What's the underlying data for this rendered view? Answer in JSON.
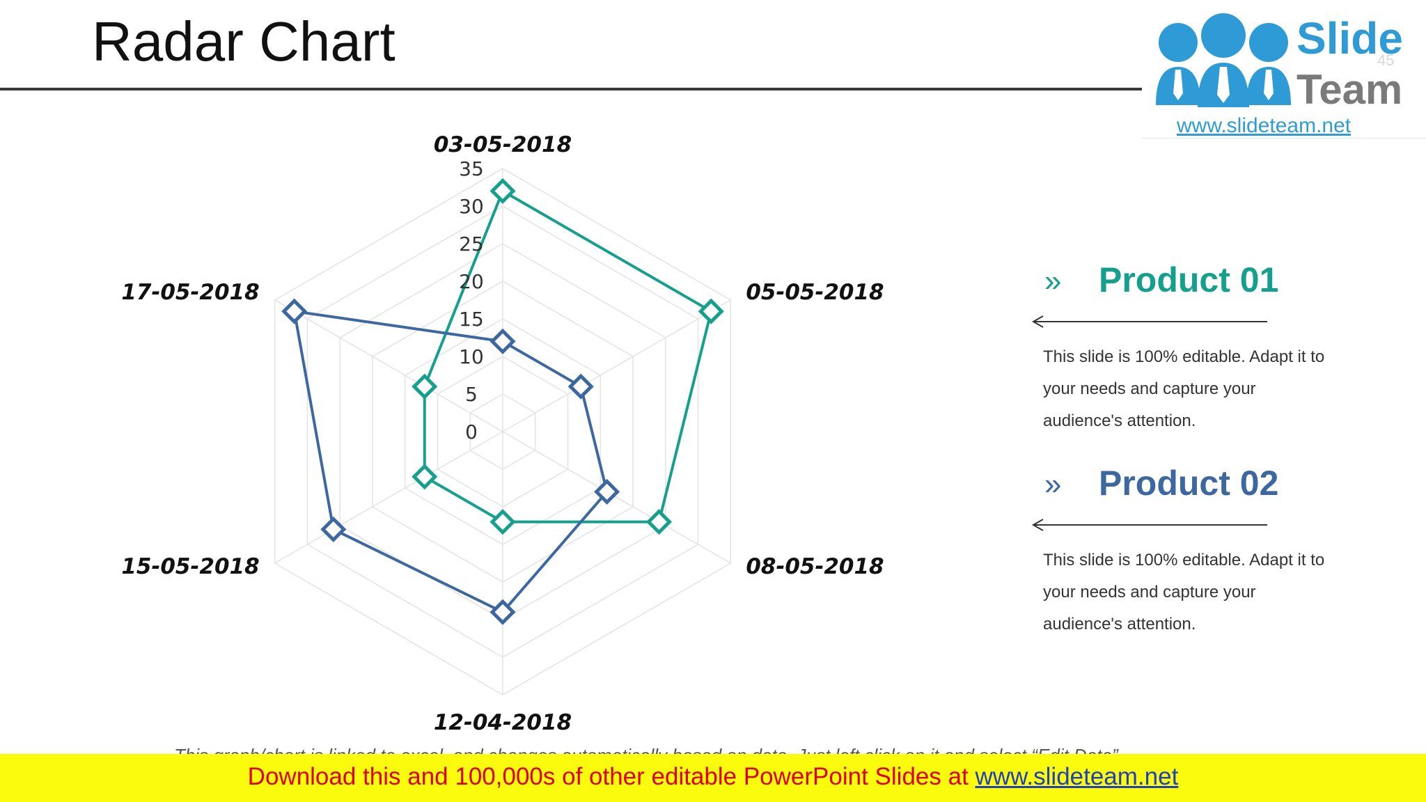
{
  "slide": {
    "title": "Radar Chart",
    "page_number": "45"
  },
  "logo": {
    "word1": "Slide",
    "word2": "Team",
    "url": "www.slideteam.net"
  },
  "legend": [
    {
      "name": "Product 01",
      "chevron": "»",
      "color": "#14a08c",
      "description": "This slide is 100% editable. Adapt it to your needs and capture your audience's attention."
    },
    {
      "name": "Product 02",
      "chevron": "»",
      "color": "#3d67a1",
      "description": "This slide is 100% editable. Adapt it to your needs and capture your audience's attention."
    }
  ],
  "footnote": "This graph/chart is linked to excel, and changes automatically based on data. Just left click on it and select “Edit Data”.",
  "banner": {
    "text": "Download this and 100,000s of other editable PowerPoint Slides at ",
    "link": "www.slideteam.net"
  },
  "colors": {
    "product_01": "#14a08c",
    "product_02": "#3d67a1",
    "grid": "#e3e3e3",
    "banner_bg": "#fbfb0d",
    "banner_text": "#e00000"
  },
  "chart_data": {
    "type": "radar",
    "categories": [
      "03-05-2018",
      "05-05-2018",
      "08-05-2018",
      "12-04-2018",
      "15-05-2018",
      "17-05-2018"
    ],
    "series": [
      {
        "name": "Product 01",
        "values": [
          32,
          32,
          24,
          12,
          12,
          12
        ]
      },
      {
        "name": "Product 02",
        "values": [
          12,
          12,
          16,
          24,
          26,
          32
        ]
      }
    ],
    "range": [
      0,
      35
    ],
    "ticks": [
      0,
      5,
      10,
      15,
      20,
      25,
      30,
      35
    ],
    "marker": "diamond",
    "grid": true
  }
}
